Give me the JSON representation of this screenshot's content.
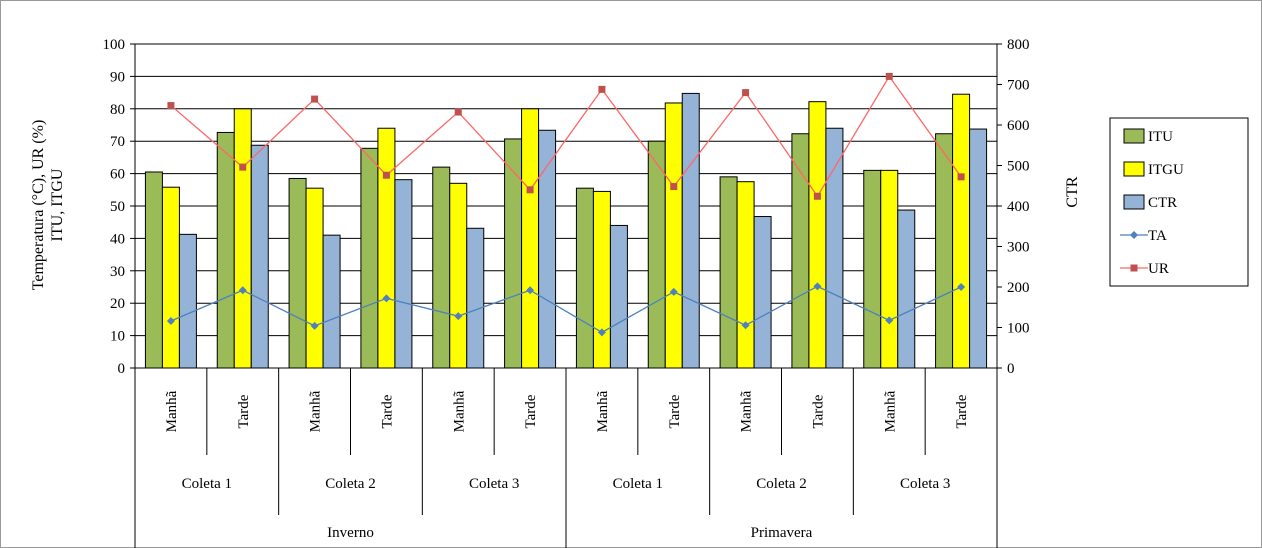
{
  "chart_data": {
    "type": "bar",
    "title": "",
    "ylabel_left": [
      "Temperatura (°C), UR (%)",
      "ITU, ITGU"
    ],
    "ylabel_right": "CTR",
    "ylim_left": [
      0,
      100
    ],
    "yticks_left": [
      "0",
      "10",
      "20",
      "30",
      "40",
      "50",
      "60",
      "70",
      "80",
      "90",
      "100"
    ],
    "ylim_right": [
      0,
      800
    ],
    "yticks_right": [
      "0",
      "100",
      "200",
      "300",
      "400",
      "500",
      "600",
      "700",
      "800"
    ],
    "gridlines": true,
    "legend_position": "right",
    "categories": [
      "Manhã",
      "Tarde",
      "Manhã",
      "Tarde",
      "Manhã",
      "Tarde",
      "Manhã",
      "Tarde",
      "Manhã",
      "Tarde",
      "Manhã",
      "Tarde"
    ],
    "groups": [
      "Coleta 1",
      "Coleta 2",
      "Coleta 3",
      "Coleta 1",
      "Coleta 2",
      "Coleta 3"
    ],
    "seasons": [
      "Inverno",
      "Primavera"
    ],
    "series": [
      {
        "name": "ITU",
        "kind": "bar",
        "axis": "left",
        "color": "#9BBB59",
        "values": [
          60.5,
          72.7,
          58.5,
          67.8,
          62.0,
          70.7,
          55.5,
          70.0,
          59.0,
          72.3,
          61.0,
          72.3
        ]
      },
      {
        "name": "ITGU",
        "kind": "bar",
        "axis": "left",
        "color": "#FFFF00",
        "values": [
          55.8,
          80.0,
          55.5,
          74.0,
          57.0,
          80.0,
          54.5,
          81.8,
          57.5,
          82.2,
          61.0,
          84.5
        ]
      },
      {
        "name": "CTR",
        "kind": "bar",
        "axis": "right",
        "color": "#95B3D7",
        "values": [
          330,
          550,
          328,
          465,
          345,
          587,
          352,
          678,
          374,
          592,
          390,
          590
        ]
      },
      {
        "name": "TA",
        "kind": "line",
        "axis": "left",
        "color": "#4F81BD",
        "marker": "diamond",
        "values": [
          14.5,
          24.0,
          13.0,
          21.5,
          16.0,
          24.0,
          11.0,
          23.5,
          13.2,
          25.2,
          14.7,
          25.0
        ]
      },
      {
        "name": "UR",
        "kind": "line",
        "axis": "left",
        "color": "#FF6666",
        "marker": "square",
        "values": [
          81.0,
          62.0,
          83.0,
          59.5,
          79.0,
          55.0,
          86.0,
          56.0,
          85.0,
          53.0,
          90.0,
          59.0
        ]
      }
    ]
  }
}
